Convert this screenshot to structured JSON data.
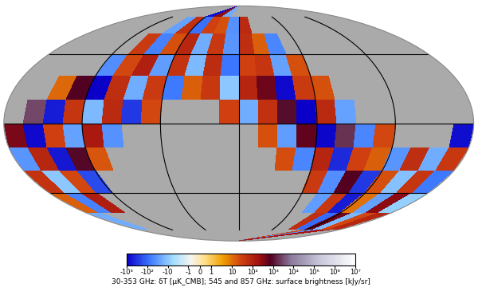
{
  "chart_data": {
    "type": "map",
    "xlim": [
      -180,
      180
    ],
    "ylim": [
      -90,
      90
    ],
    "xticks": [
      -120,
      -60,
      0,
      60,
      120
    ],
    "yticks": [
      -45,
      0,
      45
    ],
    "grid": true,
    "tick_labels": false,
    "color": "#aaaaaa",
    "cells": [
      [
        null,
        null,
        null,
        null,
        null,
        null,
        null,
        null,
        null,
        null,
        null,
        null,
        null,
        null,
        null,
        null,
        null,
        null,
        null,
        null,
        30,
        -40,
        200,
        null
      ],
      [
        -20,
        null,
        null,
        null,
        null,
        null,
        null,
        null,
        null,
        null,
        null,
        null,
        null,
        null,
        null,
        null,
        null,
        null,
        60,
        -100,
        500,
        -15,
        25,
        80
      ],
      [
        15,
        -60,
        120,
        null,
        null,
        null,
        null,
        null,
        null,
        null,
        null,
        null,
        null,
        null,
        null,
        null,
        null,
        -30,
        40,
        -500,
        10,
        -25,
        300,
        -8
      ],
      [
        50,
        -10,
        25,
        -200,
        null,
        null,
        null,
        null,
        null,
        null,
        null,
        null,
        null,
        null,
        null,
        null,
        35,
        -45,
        700,
        -300,
        20,
        -12,
        45,
        -70
      ],
      [
        -35,
        80,
        -600,
        900,
        18,
        null,
        null,
        null,
        null,
        null,
        null,
        null,
        null,
        null,
        22,
        -55,
        90,
        -400,
        30,
        15,
        -35,
        60,
        -20,
        40
      ],
      [
        400,
        -800,
        30,
        -25,
        150,
        -40,
        null,
        null,
        null,
        null,
        null,
        null,
        null,
        20,
        -30,
        600,
        -900,
        2000,
        -50,
        25,
        null,
        null,
        null,
        -700
      ],
      [
        null,
        3000,
        -500,
        45,
        -15,
        70,
        -300,
        25,
        null,
        null,
        null,
        30,
        -20,
        55,
        1000,
        -2000,
        70,
        -25,
        null,
        null,
        null,
        null,
        null,
        null
      ],
      [
        null,
        null,
        12,
        800,
        -1000,
        60,
        -20,
        35,
        -70,
        15,
        40,
        -10,
        90,
        500,
        -800,
        35,
        20,
        null,
        null,
        null,
        null,
        null,
        null,
        null
      ],
      [
        null,
        null,
        null,
        null,
        -45,
        25,
        110,
        -30,
        50,
        -15,
        65,
        -80,
        30,
        45,
        -25,
        20,
        null,
        null,
        null,
        null,
        null,
        null,
        null,
        null
      ],
      [
        null,
        null,
        null,
        null,
        null,
        35,
        -60,
        20,
        80,
        -20,
        40,
        -35,
        60,
        15,
        -50,
        null,
        null,
        null,
        null,
        null,
        null,
        null,
        null,
        null
      ],
      [
        null,
        null,
        null,
        null,
        null,
        null,
        -25,
        55,
        -90,
        30,
        20,
        -40,
        70,
        null,
        null,
        null,
        null,
        null,
        null,
        null,
        null,
        null,
        null,
        null
      ],
      [
        null,
        null,
        null,
        null,
        null,
        null,
        null,
        null,
        -700,
        300,
        -20,
        null,
        null,
        null,
        null,
        null,
        null,
        null,
        null,
        null,
        null,
        null,
        null,
        null
      ]
    ],
    "colorbar": {
      "range": [
        -1000,
        10000000
      ],
      "ticks": [
        {
          "value": -1000,
          "label": "-10³"
        },
        {
          "value": -100,
          "label": "-10²"
        },
        -10,
        -1,
        0,
        1,
        10,
        {
          "value": 100,
          "label": "10²"
        },
        {
          "value": 1000,
          "label": "10³"
        },
        {
          "value": 10000,
          "label": "10⁴"
        },
        {
          "value": 100000,
          "label": "10⁵"
        },
        {
          "value": 1000000,
          "label": "10⁶"
        },
        {
          "value": 10000000,
          "label": "10⁷"
        }
      ],
      "label": "30-353 GHz: δT [μK_CMB]; 545 and 857 GHz: surface brightness [kJy/sr]"
    }
  }
}
